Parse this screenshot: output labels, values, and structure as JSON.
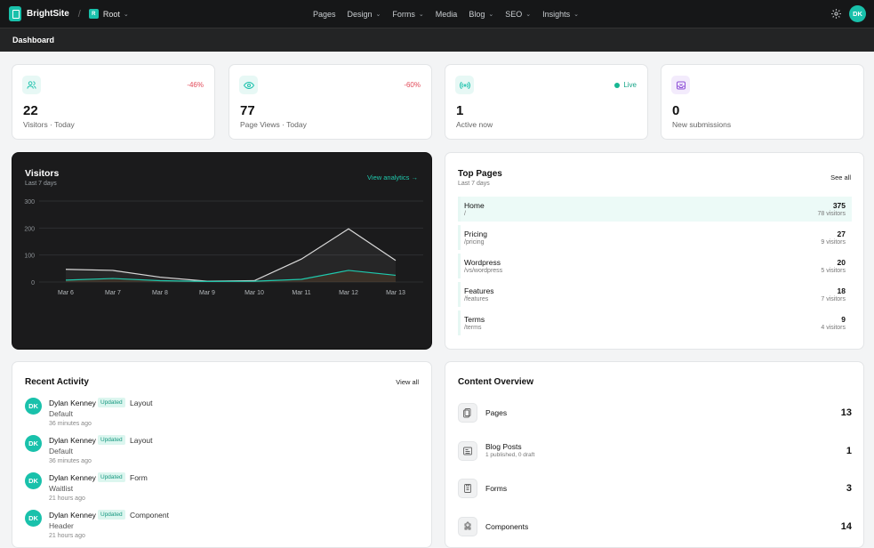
{
  "app": {
    "brand": "BrightSite",
    "site_badge": "R",
    "site_name": "Root",
    "page_title": "Dashboard",
    "user_initials": "DK"
  },
  "nav": [
    "Pages",
    "Design",
    "Forms",
    "Media",
    "Blog",
    "SEO",
    "Insights"
  ],
  "nav_has_dropdown": [
    false,
    true,
    true,
    false,
    true,
    true,
    true
  ],
  "stats": [
    {
      "value": "22",
      "label": "Visitors · Today",
      "delta": "-46%",
      "icon": "users-icon",
      "accent": "#19c1ab"
    },
    {
      "value": "77",
      "label": "Page Views · Today",
      "delta": "-60%",
      "icon": "eye-icon",
      "accent": "#19c1ab"
    },
    {
      "value": "1",
      "label": "Active now",
      "status": "Live",
      "icon": "broadcast-icon",
      "accent": "#19c1ab"
    },
    {
      "value": "0",
      "label": "New submissions",
      "icon": "inbox-icon",
      "accent": "#8e4fd8"
    }
  ],
  "visitors_chart": {
    "title": "Visitors",
    "subtitle": "Last 7 days",
    "link": "View analytics →"
  },
  "chart_data": {
    "type": "line",
    "x": [
      "Mar 6",
      "Mar 7",
      "Mar 8",
      "Mar 9",
      "Mar 10",
      "Mar 11",
      "Mar 12",
      "Mar 13"
    ],
    "yticks": [
      0,
      100,
      200,
      300
    ],
    "ylim": [
      0,
      300
    ],
    "grid": true,
    "series": [
      {
        "values": [
          47,
          43,
          18,
          3,
          5,
          85,
          197,
          80
        ],
        "color": "#d9d9d9"
      },
      {
        "values": [
          7,
          13,
          5,
          2,
          3,
          10,
          43,
          25
        ],
        "color": "#1fc9ad"
      }
    ]
  },
  "top_pages": {
    "title": "Top Pages",
    "subtitle": "Last 7 days",
    "link": "See all",
    "rows": [
      {
        "name": "Home",
        "path": "/",
        "count": "375",
        "visitors": "78 visitors"
      },
      {
        "name": "Pricing",
        "path": "/pricing",
        "count": "27",
        "visitors": "9 visitors"
      },
      {
        "name": "Wordpress",
        "path": "/vs/wordpress",
        "count": "20",
        "visitors": "5 visitors"
      },
      {
        "name": "Features",
        "path": "/features",
        "count": "18",
        "visitors": "7 visitors"
      },
      {
        "name": "Terms",
        "path": "/terms",
        "count": "9",
        "visitors": "4 visitors"
      }
    ]
  },
  "recent_activity": {
    "title": "Recent Activity",
    "link": "View all",
    "items": [
      {
        "initials": "DK",
        "user": "Dylan Kenney",
        "badge": "Updated",
        "type": "Layout",
        "target": "Default",
        "time": "36 minutes ago"
      },
      {
        "initials": "DK",
        "user": "Dylan Kenney",
        "badge": "Updated",
        "type": "Layout",
        "target": "Default",
        "time": "36 minutes ago"
      },
      {
        "initials": "DK",
        "user": "Dylan Kenney",
        "badge": "Updated",
        "type": "Form",
        "target": "Waitlist",
        "time": "21 hours ago"
      },
      {
        "initials": "DK",
        "user": "Dylan Kenney",
        "badge": "Updated",
        "type": "Component",
        "target": "Header",
        "time": "21 hours ago"
      }
    ]
  },
  "content_overview": {
    "title": "Content Overview",
    "items": [
      {
        "name": "Pages",
        "sub": "",
        "count": "13",
        "icon": "pages-icon"
      },
      {
        "name": "Blog Posts",
        "sub": "1 published, 0 draft",
        "count": "1",
        "icon": "blog-icon"
      },
      {
        "name": "Forms",
        "sub": "",
        "count": "3",
        "icon": "forms-icon"
      },
      {
        "name": "Components",
        "sub": "",
        "count": "14",
        "icon": "puzzle-icon"
      }
    ]
  }
}
